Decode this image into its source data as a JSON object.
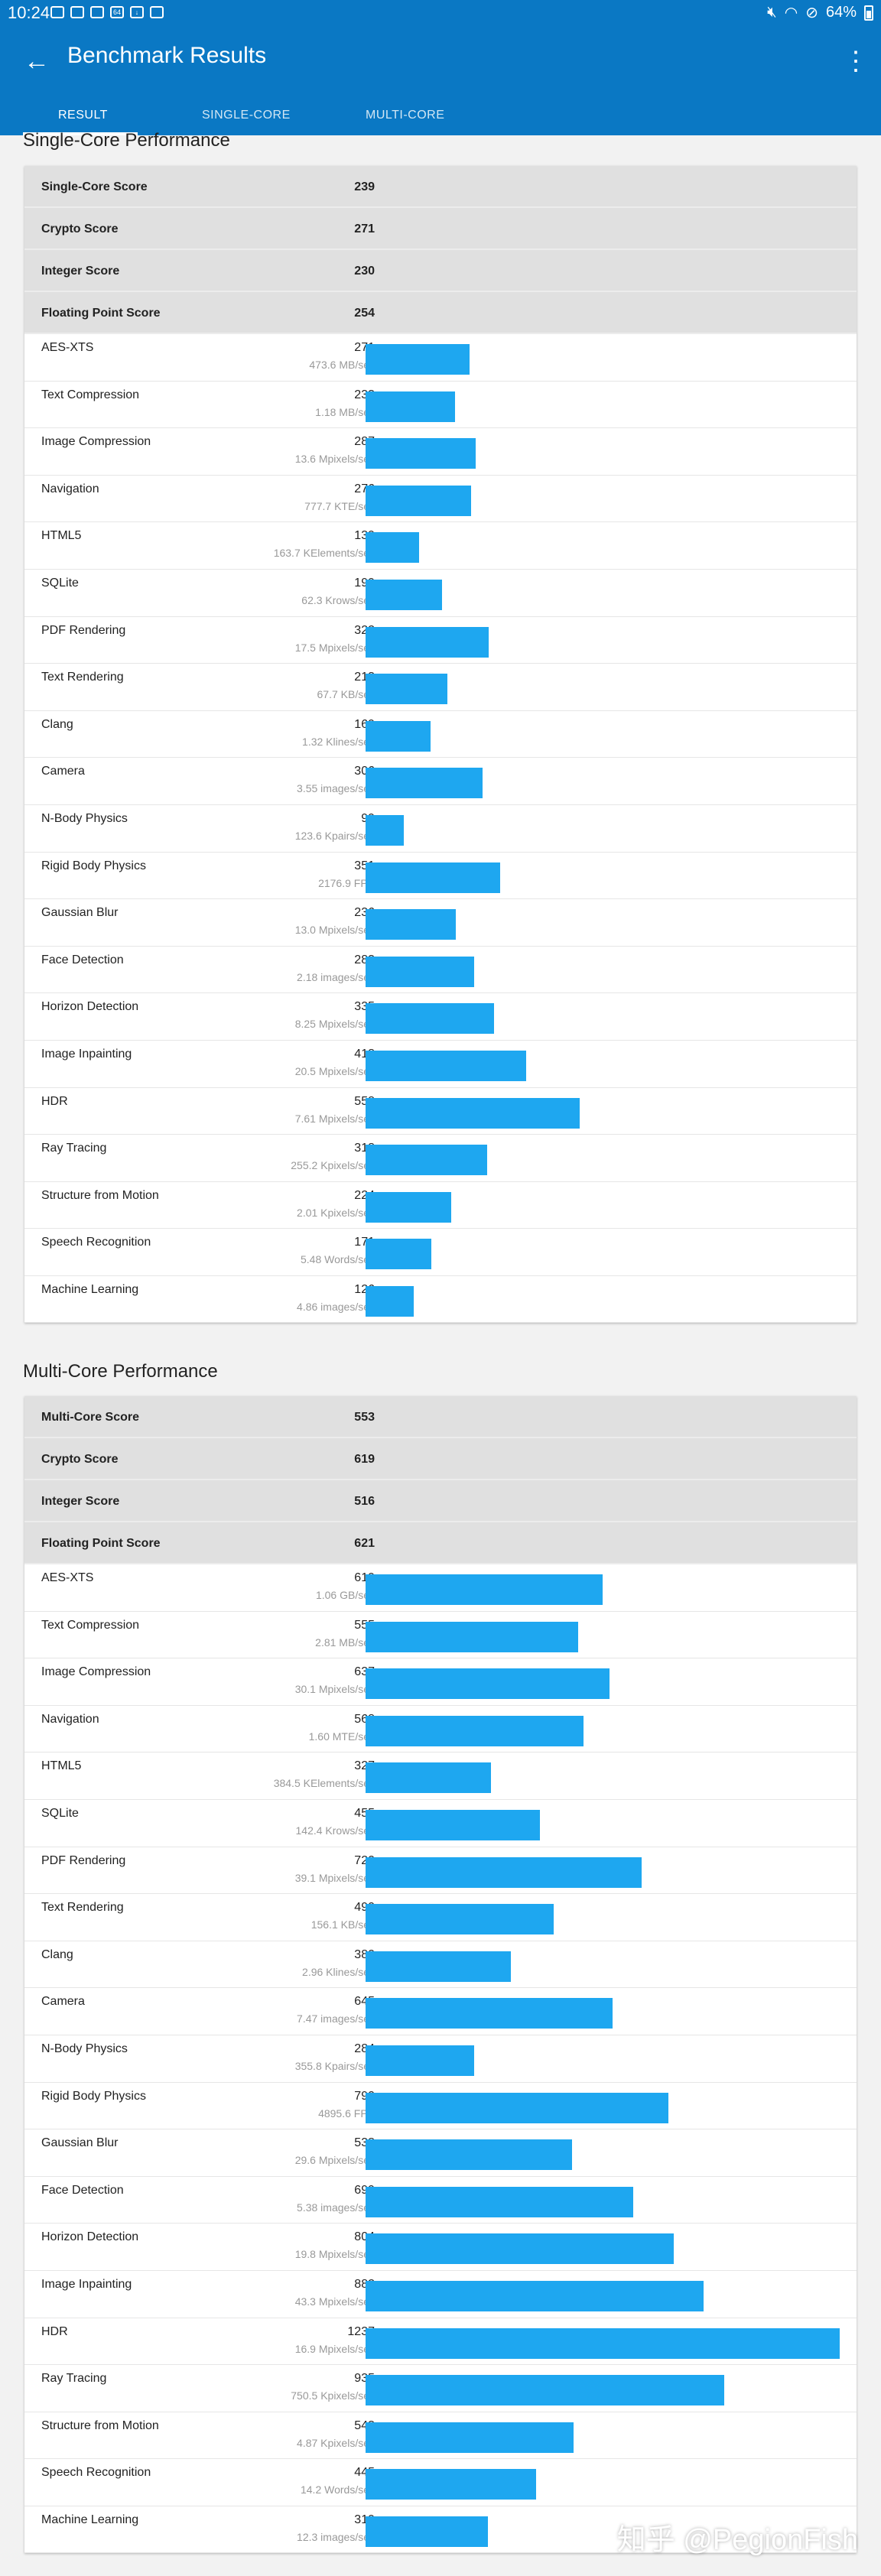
{
  "status_bar": {
    "time": "10:24",
    "battery": "64%",
    "notification_icons": [
      "sim",
      "mail",
      "image",
      "64",
      "download",
      "hd"
    ]
  },
  "app_bar": {
    "title": "Benchmark Results"
  },
  "tabs": [
    {
      "label": "RESULT",
      "active": true
    },
    {
      "label": "SINGLE-CORE",
      "active": false
    },
    {
      "label": "MULTI-CORE",
      "active": false
    }
  ],
  "colors": {
    "primary": "#0a78c4",
    "bar": "#1ea7f0"
  },
  "max_bar_score": 1237,
  "single": {
    "title": "Single-Core Performance",
    "scores": [
      {
        "label": "Single-Core Score",
        "value": "239"
      },
      {
        "label": "Crypto Score",
        "value": "271"
      },
      {
        "label": "Integer Score",
        "value": "230"
      },
      {
        "label": "Floating Point Score",
        "value": "254"
      }
    ],
    "workloads": [
      {
        "name": "AES-XTS",
        "score": 271,
        "unit": "473.6 MB/sec"
      },
      {
        "name": "Text Compression",
        "score": 233,
        "unit": "1.18 MB/sec"
      },
      {
        "name": "Image Compression",
        "score": 287,
        "unit": "13.6 Mpixels/sec"
      },
      {
        "name": "Navigation",
        "score": 276,
        "unit": "777.7 KTE/sec"
      },
      {
        "name": "HTML5",
        "score": 139,
        "unit": "163.7 KElements/sec"
      },
      {
        "name": "SQLite",
        "score": 199,
        "unit": "62.3 Krows/sec"
      },
      {
        "name": "PDF Rendering",
        "score": 322,
        "unit": "17.5 Mpixels/sec"
      },
      {
        "name": "Text Rendering",
        "score": 213,
        "unit": "67.7 KB/sec"
      },
      {
        "name": "Clang",
        "score": 169,
        "unit": "1.32 Klines/sec"
      },
      {
        "name": "Camera",
        "score": 306,
        "unit": "3.55 images/sec"
      },
      {
        "name": "N-Body Physics",
        "score": 99,
        "unit": "123.6 Kpairs/sec"
      },
      {
        "name": "Rigid Body Physics",
        "score": 351,
        "unit": "2176.9 FPS"
      },
      {
        "name": "Gaussian Blur",
        "score": 236,
        "unit": "13.0 Mpixels/sec"
      },
      {
        "name": "Face Detection",
        "score": 283,
        "unit": "2.18 images/sec"
      },
      {
        "name": "Horizon Detection",
        "score": 335,
        "unit": "8.25 Mpixels/sec"
      },
      {
        "name": "Image Inpainting",
        "score": 418,
        "unit": "20.5 Mpixels/sec"
      },
      {
        "name": "HDR",
        "score": 558,
        "unit": "7.61 Mpixels/sec"
      },
      {
        "name": "Ray Tracing",
        "score": 318,
        "unit": "255.2 Kpixels/sec"
      },
      {
        "name": "Structure from Motion",
        "score": 224,
        "unit": "2.01 Kpixels/sec"
      },
      {
        "name": "Speech Recognition",
        "score": 171,
        "unit": "5.48 Words/sec"
      },
      {
        "name": "Machine Learning",
        "score": 126,
        "unit": "4.86 images/sec"
      }
    ]
  },
  "multi": {
    "title": "Multi-Core Performance",
    "scores": [
      {
        "label": "Multi-Core Score",
        "value": "553"
      },
      {
        "label": "Crypto Score",
        "value": "619"
      },
      {
        "label": "Integer Score",
        "value": "516"
      },
      {
        "label": "Floating Point Score",
        "value": "621"
      }
    ],
    "workloads": [
      {
        "name": "AES-XTS",
        "score": 619,
        "unit": "1.06 GB/sec"
      },
      {
        "name": "Text Compression",
        "score": 555,
        "unit": "2.81 MB/sec"
      },
      {
        "name": "Image Compression",
        "score": 637,
        "unit": "30.1 Mpixels/sec"
      },
      {
        "name": "Navigation",
        "score": 568,
        "unit": "1.60 MTE/sec"
      },
      {
        "name": "HTML5",
        "score": 327,
        "unit": "384.5 KElements/sec"
      },
      {
        "name": "SQLite",
        "score": 455,
        "unit": "142.4 Krows/sec"
      },
      {
        "name": "PDF Rendering",
        "score": 720,
        "unit": "39.1 Mpixels/sec"
      },
      {
        "name": "Text Rendering",
        "score": 490,
        "unit": "156.1 KB/sec"
      },
      {
        "name": "Clang",
        "score": 380,
        "unit": "2.96 Klines/sec"
      },
      {
        "name": "Camera",
        "score": 645,
        "unit": "7.47 images/sec"
      },
      {
        "name": "N-Body Physics",
        "score": 284,
        "unit": "355.8 Kpairs/sec"
      },
      {
        "name": "Rigid Body Physics",
        "score": 790,
        "unit": "4895.6 FPS"
      },
      {
        "name": "Gaussian Blur",
        "score": 538,
        "unit": "29.6 Mpixels/sec"
      },
      {
        "name": "Face Detection",
        "score": 699,
        "unit": "5.38 images/sec"
      },
      {
        "name": "Horizon Detection",
        "score": 804,
        "unit": "19.8 Mpixels/sec"
      },
      {
        "name": "Image Inpainting",
        "score": 882,
        "unit": "43.3 Mpixels/sec"
      },
      {
        "name": "HDR",
        "score": 1237,
        "unit": "16.9 Mpixels/sec"
      },
      {
        "name": "Ray Tracing",
        "score": 935,
        "unit": "750.5 Kpixels/sec"
      },
      {
        "name": "Structure from Motion",
        "score": 543,
        "unit": "4.87 Kpixels/sec"
      },
      {
        "name": "Speech Recognition",
        "score": 445,
        "unit": "14.2 Words/sec"
      },
      {
        "name": "Machine Learning",
        "score": 319,
        "unit": "12.3 images/sec"
      }
    ]
  },
  "watermark": "知乎 @PegionFish"
}
